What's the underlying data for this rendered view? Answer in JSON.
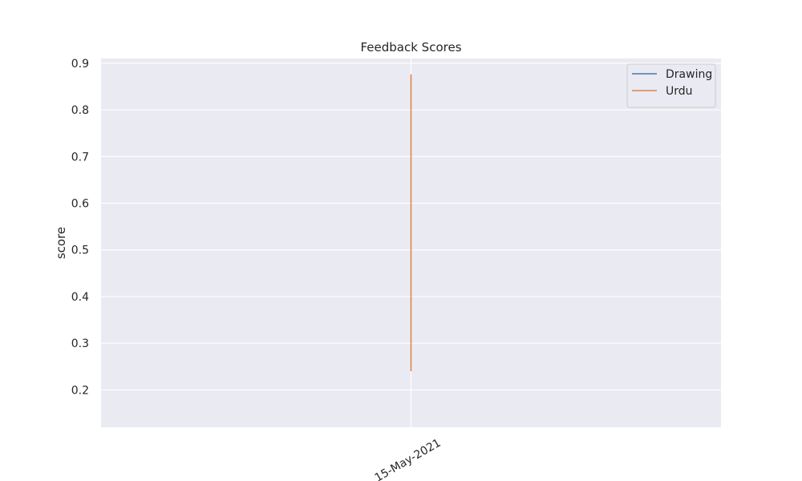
{
  "chart_data": {
    "type": "line",
    "title": "Feedback Scores",
    "xlabel": "",
    "ylabel": "score",
    "x": [
      "15-May-2021"
    ],
    "x_tick_labels": [
      "15-May-2021"
    ],
    "ylim": [
      0.12,
      0.91
    ],
    "y_ticks": [
      0.2,
      0.3,
      0.4,
      0.5,
      0.6,
      0.7,
      0.8,
      0.9
    ],
    "y_tick_labels": [
      "0.2",
      "0.3",
      "0.4",
      "0.5",
      "0.6",
      "0.7",
      "0.8",
      "0.9"
    ],
    "grid": true,
    "legend_position": "top-right",
    "series": [
      {
        "name": "Drawing",
        "color": "#4c72b0",
        "points": []
      },
      {
        "name": "Urdu",
        "color": "#dd8452",
        "points": [
          {
            "x": "15-May-2021",
            "y": 0.24
          },
          {
            "x": "15-May-2021",
            "y": 0.876
          }
        ]
      }
    ]
  },
  "colors": {
    "plot_background": "#eaeaf2",
    "grid": "#ffffff",
    "text": "#262626"
  }
}
